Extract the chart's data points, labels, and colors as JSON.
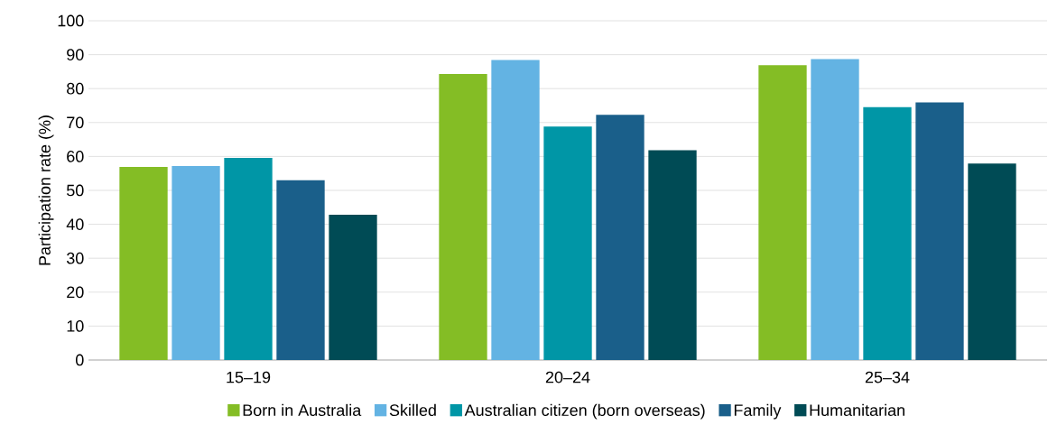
{
  "chart_data": {
    "type": "bar",
    "ylabel": "Participation rate (%)",
    "categories": [
      "15–19",
      "20–24",
      "25–34"
    ],
    "series": [
      {
        "name": "Born in Australia",
        "color": "#84bd25",
        "values": [
          56.9,
          84.3,
          86.9
        ]
      },
      {
        "name": "Skilled",
        "color": "#63b3e3",
        "values": [
          57.2,
          88.4,
          88.7
        ]
      },
      {
        "name": "Australian citizen (born overseas)",
        "color": "#0096a6",
        "values": [
          59.6,
          68.8,
          74.5
        ]
      },
      {
        "name": "Family",
        "color": "#1a5f8a",
        "values": [
          53.0,
          72.3,
          75.9
        ]
      },
      {
        "name": "Humanitarian",
        "color": "#004b55",
        "values": [
          42.8,
          61.8,
          57.9
        ]
      }
    ],
    "ylim": [
      0,
      100
    ],
    "yticks": [
      0,
      10,
      20,
      30,
      40,
      50,
      60,
      70,
      80,
      90,
      100
    ],
    "grid": "y",
    "legend": "bottom"
  }
}
